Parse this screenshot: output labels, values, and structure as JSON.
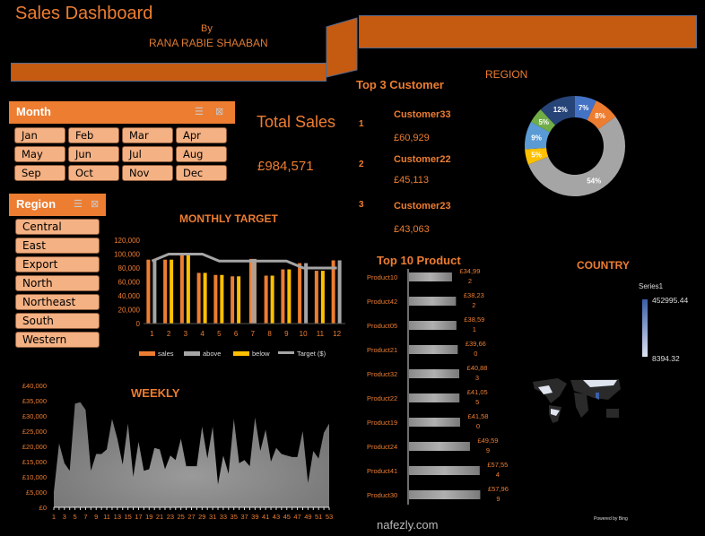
{
  "header": {
    "title": "Sales Dashboard",
    "by": "By",
    "author": "RANA RABIE SHAABAN"
  },
  "month_slicer": {
    "title": "Month",
    "items": [
      "Jan",
      "Feb",
      "Mar",
      "Apr",
      "May",
      "Jun",
      "Jul",
      "Aug",
      "Sep",
      "Oct",
      "Nov",
      "Dec"
    ]
  },
  "region_slicer": {
    "title": "Region",
    "items": [
      "Central",
      "East",
      "Export",
      "North",
      "Northeast",
      "South",
      "Western"
    ]
  },
  "total_sales": {
    "label": "Total Sales",
    "value": "£984,571"
  },
  "top_customers": {
    "title": "Top 3 Customer",
    "items": [
      {
        "rank": "1",
        "name": "Customer33",
        "value": "£60,929"
      },
      {
        "rank": "2",
        "name": "Customer22",
        "value": "£45,113"
      },
      {
        "rank": "3",
        "name": "Customer23",
        "value": "£43,063"
      }
    ]
  },
  "country": {
    "title": "COUNTRY",
    "legend_title": "Series1",
    "max": "452995.44",
    "min": "8394.32",
    "credit": "Powered by Bing"
  },
  "watermark": "nafezly.com",
  "colors": {
    "accent": "#ed7d31",
    "dark_orange": "#c55a11",
    "slicer_btn": "#f4b183"
  },
  "chart_data": [
    {
      "id": "region",
      "type": "pie",
      "title": "REGION",
      "values": [
        7,
        8,
        54,
        5,
        9,
        5,
        12
      ],
      "labels": [
        "7%",
        "8%",
        "54%",
        "5%",
        "9%",
        "5%",
        "12%"
      ],
      "colors": [
        "#4472c4",
        "#ed7d31",
        "#a5a5a5",
        "#ffc000",
        "#5b9bd5",
        "#70ad47",
        "#264478"
      ]
    },
    {
      "id": "monthly",
      "type": "bar",
      "title": "MONTHLY TARGET",
      "categories": [
        "1",
        "2",
        "3",
        "4",
        "5",
        "6",
        "7",
        "8",
        "9",
        "10",
        "11",
        "12"
      ],
      "yticks": [
        "0",
        "20,000",
        "40,000",
        "60,000",
        "80,000",
        "100,000",
        "120,000"
      ],
      "ylim": [
        0,
        120000
      ],
      "sales": [
        92000,
        92000,
        100000,
        73000,
        70000,
        68000,
        93000,
        69000,
        78000,
        87000,
        76000,
        91000
      ],
      "status": [
        "above",
        "below",
        "below",
        "below",
        "below",
        "below",
        "above",
        "below",
        "below",
        "above",
        "below",
        "above"
      ],
      "target": [
        90000,
        100000,
        100000,
        100000,
        90000,
        90000,
        90000,
        90000,
        90000,
        80000,
        80000,
        80000
      ],
      "legend": [
        "sales",
        "above",
        "below",
        "Target ($)"
      ]
    },
    {
      "id": "weekly",
      "type": "area",
      "title": "WEEKLY",
      "ylim": [
        0,
        40000
      ],
      "yticks": [
        "£0",
        "£5,000",
        "£10,000",
        "£15,000",
        "£20,000",
        "£25,000",
        "£30,000",
        "£35,000",
        "£40,000"
      ],
      "values": [
        5000,
        21000,
        14500,
        12000,
        34000,
        34500,
        32000,
        12000,
        17500,
        17500,
        19000,
        29000,
        22500,
        14000,
        27500,
        10000,
        21500,
        12000,
        12500,
        19500,
        19000,
        12500,
        17000,
        15500,
        22500,
        13500,
        13500,
        13500,
        26500,
        16000,
        26500,
        7500,
        17000,
        11000,
        29000,
        14500,
        15500,
        13500,
        29500,
        18500,
        25500,
        15000,
        19500,
        17500,
        17000,
        16500,
        16500,
        25000,
        8000,
        18500,
        16000,
        24500,
        27500
      ]
    },
    {
      "id": "products",
      "type": "bar",
      "title": "Top 10 Product",
      "categories": [
        "Product10",
        "Product42",
        "Product05",
        "Product21",
        "Product32",
        "Product22",
        "Product19",
        "Product24",
        "Product41",
        "Product30"
      ],
      "values": [
        34992,
        38232,
        38591,
        39660,
        40883,
        41055,
        41580,
        49599,
        57554,
        57969
      ],
      "labels": [
        "£34,992",
        "£38,232",
        "£38,591",
        "£39,660",
        "£40,883",
        "£41,055",
        "£41,580",
        "£49,599",
        "£57,554",
        "£57,969"
      ]
    }
  ]
}
